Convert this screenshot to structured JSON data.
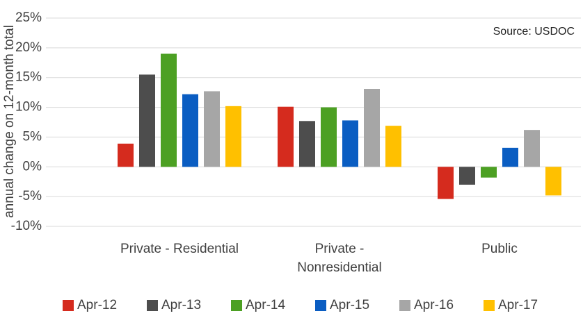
{
  "chart_data": {
    "type": "bar",
    "y_label": "annual change on 12-month total",
    "annotation": "Source: USDOC",
    "categories": [
      "Private - Residential",
      "Private - Nonresidential",
      "Public"
    ],
    "series": [
      {
        "name": "Apr-12",
        "color": "#d52b1e",
        "values": [
          3.9,
          10.1,
          -5.4
        ]
      },
      {
        "name": "Apr-13",
        "color": "#4d4d4d",
        "values": [
          15.5,
          7.7,
          -3.0
        ]
      },
      {
        "name": "Apr-14",
        "color": "#4ca023",
        "values": [
          19.0,
          10.0,
          -1.8
        ]
      },
      {
        "name": "Apr-15",
        "color": "#0a5dc2",
        "values": [
          12.2,
          7.8,
          3.2
        ]
      },
      {
        "name": "Apr-16",
        "color": "#a6a6a6",
        "values": [
          12.7,
          13.1,
          6.2
        ]
      },
      {
        "name": "Apr-17",
        "color": "#ffc000",
        "values": [
          10.2,
          6.9,
          -4.8
        ]
      }
    ],
    "ylim": [
      -10,
      25
    ],
    "yticks": [
      {
        "value": -10,
        "label": "-10%"
      },
      {
        "value": -5,
        "label": "-5%"
      },
      {
        "value": 0,
        "label": "0%"
      },
      {
        "value": 5,
        "label": "5%"
      },
      {
        "value": 10,
        "label": "10%"
      },
      {
        "value": 15,
        "label": "15%"
      },
      {
        "value": 20,
        "label": "20%"
      },
      {
        "value": 25,
        "label": "25%"
      }
    ],
    "grid": true,
    "legend": "bottom"
  }
}
